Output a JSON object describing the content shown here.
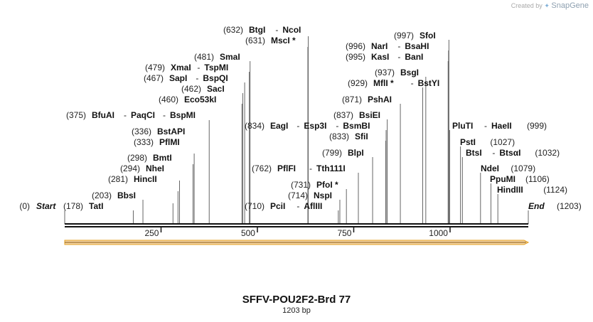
{
  "credit": {
    "prefix": "Created by",
    "brand": "SnapGene"
  },
  "map": {
    "title": "SFFV-POU2F2-Brd 77",
    "subtitle": "1203 bp",
    "length": 1203,
    "ticks": [
      250,
      500,
      750,
      1000
    ],
    "colors": {
      "line": "#111111",
      "feature_fill": "#f4d4a4",
      "feature_stroke": "#e5a020",
      "leader": "#666666"
    },
    "start_label": {
      "text": "Start",
      "num": "(0)"
    },
    "end_label": {
      "text": "End",
      "num": "(1203)"
    },
    "feature_arrow": {
      "direction": "forward",
      "start": 1,
      "end": 1203
    }
  },
  "sites": [
    {
      "num": "(178)",
      "names": [
        "TatI"
      ],
      "pos": 178
    },
    {
      "num": "(203)",
      "names": [
        "BbsI"
      ],
      "pos": 203
    },
    {
      "num": "(281)",
      "names": [
        "HincII"
      ],
      "pos": 281
    },
    {
      "num": "(294)",
      "names": [
        "NheI"
      ],
      "pos": 294
    },
    {
      "num": "(298)",
      "names": [
        "BmtI"
      ],
      "pos": 298
    },
    {
      "num": "(333)",
      "names": [
        "PflMI"
      ],
      "pos": 333
    },
    {
      "num": "(336)",
      "names": [
        "BstAPI"
      ],
      "pos": 336
    },
    {
      "num": "(375)",
      "names": [
        "BfuAI",
        "PaqCI",
        "BspMI"
      ],
      "pos": 375
    },
    {
      "num": "(460)",
      "names": [
        "Eco53kI"
      ],
      "pos": 460
    },
    {
      "num": "(462)",
      "names": [
        "SacI"
      ],
      "pos": 462
    },
    {
      "num": "(467)",
      "names": [
        "SapI",
        "BspQI"
      ],
      "pos": 467
    },
    {
      "num": "(479)",
      "names": [
        "XmaI",
        "TspMI"
      ],
      "pos": 479
    },
    {
      "num": "(481)",
      "names": [
        "SmaI"
      ],
      "pos": 481
    },
    {
      "num": "(631)",
      "names": [
        "MscI *"
      ],
      "pos": 631
    },
    {
      "num": "(632)",
      "names": [
        "BtgI",
        "NcoI"
      ],
      "pos": 632
    },
    {
      "num": "(710)",
      "names": [
        "PciI",
        "AflIII"
      ],
      "pos": 710
    },
    {
      "num": "(714)",
      "names": [
        "NspI"
      ],
      "pos": 714
    },
    {
      "num": "(731)",
      "names": [
        "PfoI *"
      ],
      "pos": 731
    },
    {
      "num": "(762)",
      "names": [
        "PflFI",
        "Tth111I"
      ],
      "pos": 762
    },
    {
      "num": "(799)",
      "names": [
        "BlpI"
      ],
      "pos": 799
    },
    {
      "num": "(833)",
      "names": [
        "SfiI"
      ],
      "pos": 833
    },
    {
      "num": "(834)",
      "names": [
        "EagI",
        "Esp3I",
        "BsmBI"
      ],
      "pos": 834
    },
    {
      "num": "(837)",
      "names": [
        "BsiEI"
      ],
      "pos": 837
    },
    {
      "num": "(871)",
      "names": [
        "PshAI"
      ],
      "pos": 871
    },
    {
      "num": "(929)",
      "names": [
        "MflI *",
        "BstYI"
      ],
      "pos": 929
    },
    {
      "num": "(937)",
      "names": [
        "BsgI"
      ],
      "pos": 937
    },
    {
      "num": "(995)",
      "names": [
        "KasI",
        "BanI"
      ],
      "pos": 995
    },
    {
      "num": "(996)",
      "names": [
        "NarI",
        "BsaHI"
      ],
      "pos": 996
    },
    {
      "num": "(997)",
      "names": [
        "SfoI"
      ],
      "pos": 997
    },
    {
      "num": "(999)",
      "names": [
        "PluTI",
        "HaeII"
      ],
      "pos": 999
    },
    {
      "num": "(1027)",
      "names": [
        "PstI"
      ],
      "pos": 1027
    },
    {
      "num": "(1032)",
      "names": [
        "BtsI",
        "BtsαI"
      ],
      "pos": 1032
    },
    {
      "num": "(1079)",
      "names": [
        "NdeI"
      ],
      "pos": 1079
    },
    {
      "num": "(1106)",
      "names": [
        "PpuMI"
      ],
      "pos": 1106
    },
    {
      "num": "(1124)",
      "names": [
        "HindIII"
      ],
      "pos": 1124
    }
  ]
}
